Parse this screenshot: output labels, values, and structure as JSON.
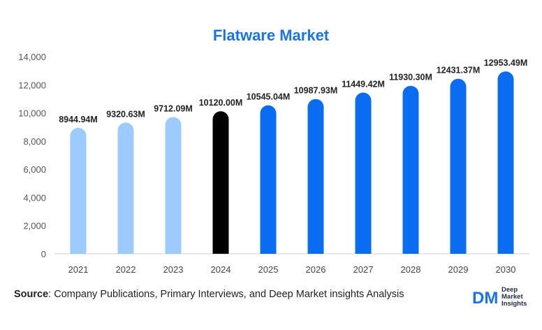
{
  "source": {
    "label": "Source",
    "text": ": Company Publications, Primary Interviews, and Deep Market insights Analysis"
  },
  "logo": {
    "mark": "DM",
    "line1": "Deep",
    "line2": "Market",
    "line3": "Insights"
  },
  "colors": {
    "historical": "#9ecbff",
    "base": "#000000",
    "forecast": "#0a6cf0",
    "title": "#1a73e8"
  },
  "chart_data": {
    "type": "bar",
    "title": "Flatware Market",
    "xlabel": "",
    "ylabel": "",
    "categories": [
      "2021",
      "2022",
      "2023",
      "2024",
      "2025",
      "2026",
      "2027",
      "2028",
      "2029",
      "2030"
    ],
    "values": [
      8944.94,
      9320.63,
      9712.09,
      10120.0,
      10545.04,
      10987.93,
      11449.42,
      11930.3,
      12431.37,
      12953.49
    ],
    "data_labels": [
      "8944.94M",
      "9320.63M",
      "9712.09M",
      "10120.00M",
      "10545.04M",
      "10987.93M",
      "11449.42M",
      "11930.30M",
      "12431.37M",
      "12953.49M"
    ],
    "bar_kinds": [
      "historical",
      "historical",
      "historical",
      "base",
      "forecast",
      "forecast",
      "forecast",
      "forecast",
      "forecast",
      "forecast"
    ],
    "ylim": [
      0,
      14000
    ],
    "yticks": [
      0,
      2000,
      4000,
      6000,
      8000,
      10000,
      12000,
      14000
    ],
    "ytick_labels": [
      "0",
      "2,000",
      "4,000",
      "6,000",
      "8,000",
      "10,000",
      "12,000",
      "14,000"
    ],
    "grid": false,
    "legend": "none"
  }
}
